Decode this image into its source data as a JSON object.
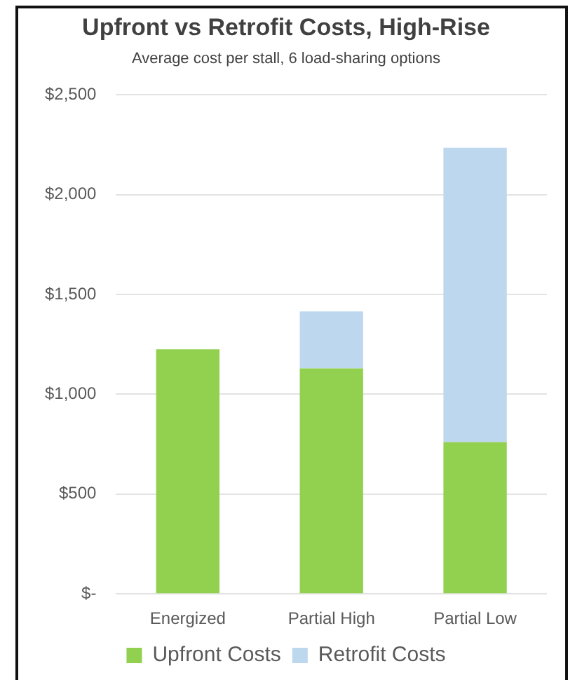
{
  "chart_data": {
    "type": "bar",
    "title": "Upfront vs Retrofit Costs, High-Rise",
    "subtitle": "Average cost per stall, 6 load-sharing options",
    "categories": [
      "Energized",
      "Partial High",
      "Partial Low"
    ],
    "series": [
      {
        "name": "Upfront Costs",
        "color": "#92d050",
        "values": [
          1225,
          1130,
          760
        ]
      },
      {
        "name": "Retrofit Costs",
        "color": "#bdd7ee",
        "values": [
          0,
          285,
          1475
        ]
      }
    ],
    "stacked": true,
    "ylim": [
      0,
      2500
    ],
    "yticks": [
      {
        "value": 0,
        "label": "$-"
      },
      {
        "value": 500,
        "label": "$500"
      },
      {
        "value": 1000,
        "label": "$1,000"
      },
      {
        "value": 1500,
        "label": "$1,500"
      },
      {
        "value": 2000,
        "label": "$2,000"
      },
      {
        "value": 2500,
        "label": "$2,500"
      }
    ],
    "grid": "y",
    "legend": "bottom"
  }
}
